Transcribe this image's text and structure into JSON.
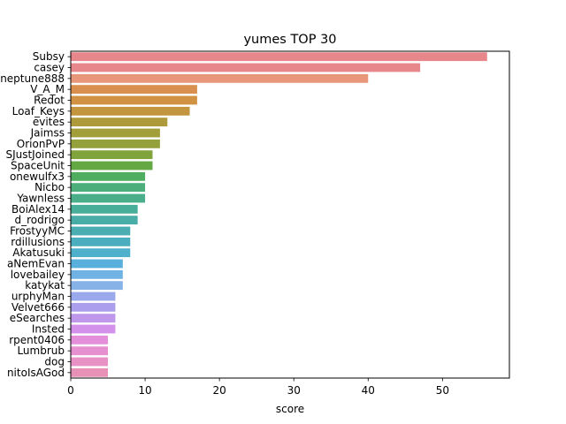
{
  "chart_data": {
    "type": "bar",
    "orientation": "horizontal",
    "title": "yumes TOP 30",
    "xlabel": "score",
    "ylabel": "",
    "xlim": [
      0,
      59
    ],
    "xticks": [
      0,
      10,
      20,
      30,
      40,
      50
    ],
    "grid": false,
    "legend": "none",
    "categories": [
      "Subsy",
      "casey",
      "neptune888",
      "V_A_M",
      "Redot",
      "Loaf_Keys",
      "evites",
      "Jaimss",
      "OrionPvP",
      "SJustJoined",
      "SpaceUnit",
      "onewulfx3",
      "Nicbo",
      "Yawnless",
      "BoiAlex14",
      "d_rodrigo",
      "FrostyyMC",
      "rdillusions",
      "Akatusuki",
      "aNemEvan",
      "lovebailey",
      "katykat",
      "urphyMan",
      "Velvet666",
      "eSearches",
      "Insted",
      "rpent0406",
      "Lumbrub",
      "dog",
      "nitoIsAGod"
    ],
    "values": [
      56,
      47,
      40,
      17,
      17,
      16,
      13,
      12,
      12,
      11,
      11,
      10,
      10,
      10,
      9,
      9,
      8,
      8,
      8,
      7,
      7,
      7,
      6,
      6,
      6,
      6,
      5,
      5,
      5,
      5
    ],
    "colors": [
      "#e8878b",
      "#e8878b",
      "#e8967a",
      "#d98f4e",
      "#d29244",
      "#c2953e",
      "#ae9a3b",
      "#a29e3a",
      "#94a13b",
      "#80a33b",
      "#63a842",
      "#4fad60",
      "#4bae7b",
      "#4aae8b",
      "#48ae99",
      "#47ada6",
      "#49adb1",
      "#4aaebe",
      "#4fb0cc",
      "#5ab0dc",
      "#6fb2e3",
      "#87b2e8",
      "#9aa8ec",
      "#ab9eec",
      "#bf98ec",
      "#d391eb",
      "#e48fd9",
      "#e690cf",
      "#e891c4",
      "#e891b7"
    ]
  }
}
